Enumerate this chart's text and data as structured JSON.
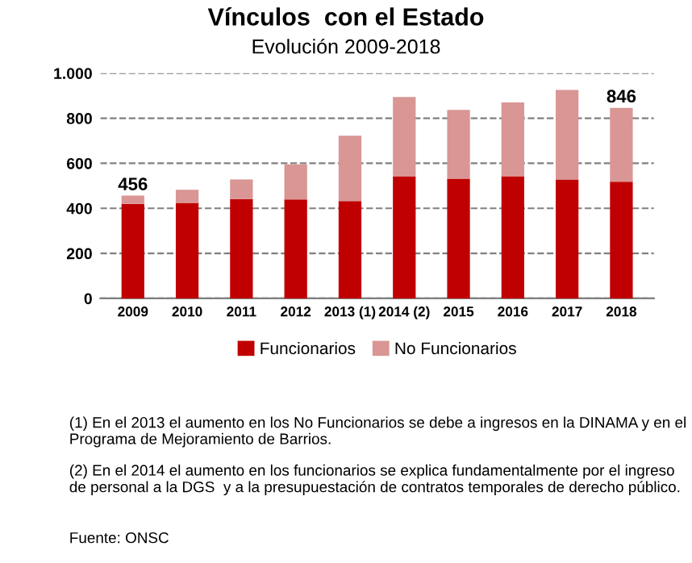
{
  "chart_data": {
    "type": "bar",
    "title": "Vínculos  con el Estado",
    "subtitle": "Evolución 2009-2018",
    "categories": [
      "2009",
      "2010",
      "2011",
      "2012",
      "2013 (1)",
      "2014 (2)",
      "2015",
      "2016",
      "2017",
      "2018"
    ],
    "stacked": true,
    "series": [
      {
        "name": "Funcionarios",
        "color": "#c00000",
        "values": [
          420,
          424,
          441,
          439,
          432,
          542,
          532,
          542,
          528,
          518
        ]
      },
      {
        "name": "No Funcionarios",
        "color": "#d99694",
        "values": [
          36,
          58,
          87,
          156,
          290,
          352,
          305,
          328,
          398,
          328
        ]
      }
    ],
    "totals": [
      "456",
      null,
      null,
      null,
      null,
      null,
      null,
      null,
      null,
      "846"
    ],
    "ylim": [
      0,
      1000
    ],
    "yticks": [
      0,
      200,
      400,
      600,
      800,
      {
        "value": 1000,
        "label": "1.000"
      }
    ],
    "grid": "y",
    "legend": "bottom",
    "annotations": [
      "(1) En el 2013 el aumento en los No Funcionarios se debe a ingresos en la DINAMA y en el Programa de Mejoramiento de Barrios.",
      "(2) En el 2014 el aumento en los funcionarios se explica fundamentalmente por el ingreso de personal a la DGS  y a la presupuestación de contratos temporales de derecho público.",
      "Fuente: ONSC"
    ]
  }
}
